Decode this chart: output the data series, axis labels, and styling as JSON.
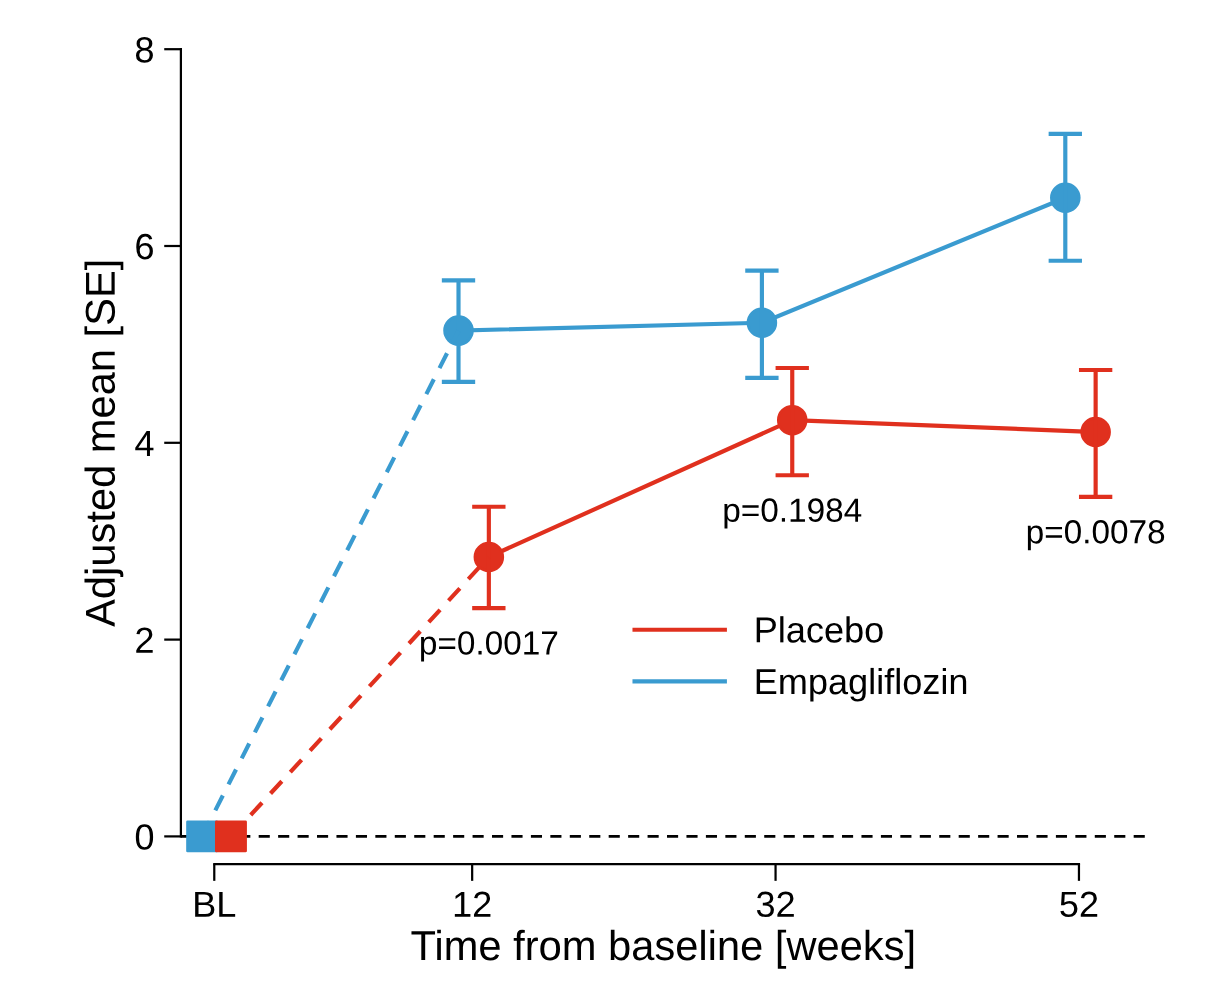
{
  "chart_data": {
    "type": "line",
    "xlabel": "Time from baseline [weeks]",
    "ylabel": "Adjusted mean [SE]",
    "xlim": [
      -7.2,
      56.4
    ],
    "ylim": [
      0,
      8
    ],
    "xticks": [
      {
        "value": -5,
        "label": "BL"
      },
      12,
      32,
      52
    ],
    "yticks": [
      0,
      2,
      4,
      6,
      8
    ],
    "grid": false,
    "legend": "bottom right",
    "marker": "circle",
    "ref_lines": [
      {
        "axis": "y",
        "value": 0,
        "color": "#000000",
        "line_style": "dashed"
      }
    ],
    "series": [
      {
        "name": "Placebo",
        "color": "#e0301e",
        "x": [
          13.1,
          33.1,
          53.1
        ],
        "values": [
          2.84,
          4.23,
          4.11
        ],
        "errors": [
          [
            2.32,
            3.35
          ],
          [
            3.67,
            4.76
          ],
          [
            3.45,
            4.74
          ]
        ]
      },
      {
        "name": "Empagliflozin",
        "color": "#3a9bd0",
        "x": [
          11.1,
          31.1,
          51.1
        ],
        "values": [
          5.14,
          5.22,
          6.49
        ],
        "errors": [
          [
            4.62,
            5.65
          ],
          [
            4.66,
            5.75
          ],
          [
            5.85,
            7.14
          ]
        ]
      },
      {
        "color": "#e0301e",
        "x": [
          -3.9,
          13.1
        ],
        "values": [
          0,
          2.84
        ],
        "line_style": "dashed",
        "marker": "none"
      },
      {
        "color": "#3a9bd0",
        "x": [
          -5.8,
          11.1
        ],
        "values": [
          0,
          5.14
        ],
        "line_style": "dashed",
        "marker": "none"
      },
      {
        "type": "scatter",
        "color": "#3a9bd0",
        "x": [
          -5.8
        ],
        "values": [
          0
        ],
        "marker": "square"
      },
      {
        "type": "scatter",
        "color": "#e0301e",
        "x": [
          -3.9
        ],
        "values": [
          0
        ],
        "marker": "square"
      }
    ],
    "annotations": [
      "p=0.0017",
      "p=0.1984",
      "p=0.0078"
    ]
  }
}
